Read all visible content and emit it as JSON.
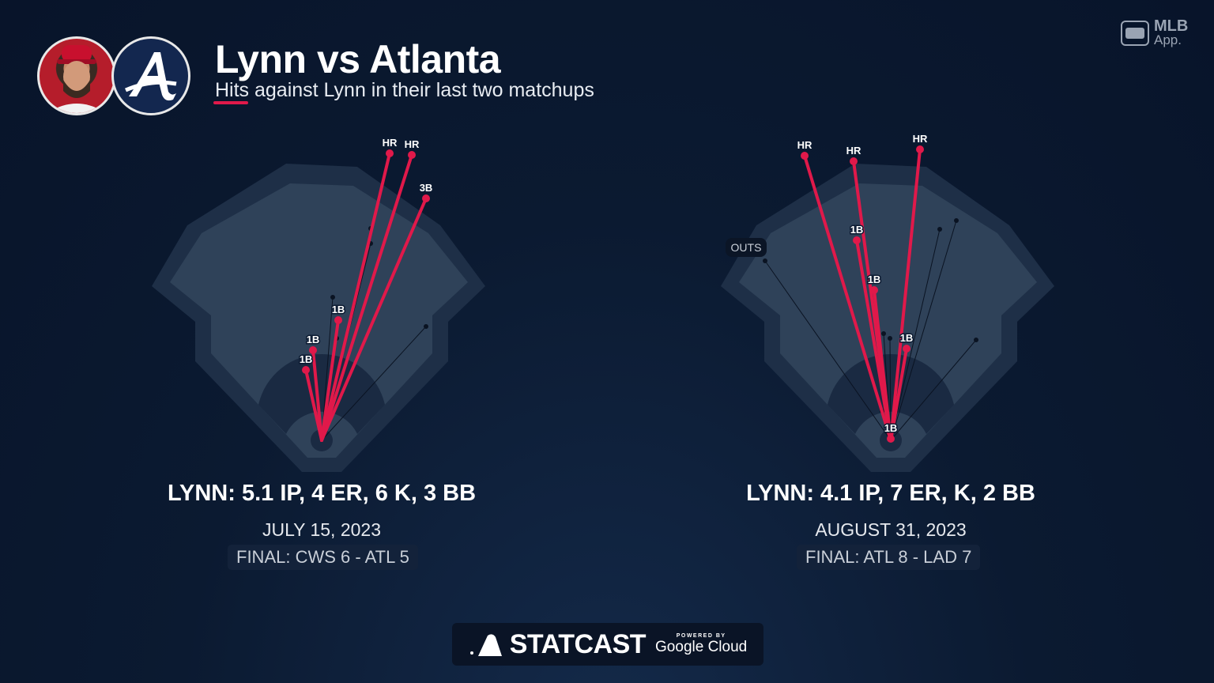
{
  "header": {
    "title": "Lynn vs Atlanta",
    "subtitle": "Hits against Lynn in their last two matchups",
    "accent": "#e0194a"
  },
  "brand": {
    "app_line1": "MLB",
    "app_line2": "App.",
    "footer_logo": "STATCAST",
    "powered_by": "POWERED BY",
    "partner": "Google Cloud"
  },
  "games": [
    {
      "stat_line": "LYNN: 5.1 IP, 4 ER, 6 K, 3 BB",
      "date": "JULY 15, 2023",
      "final": "FINAL: CWS 6 - ATL 5",
      "hits": [
        "HR",
        "HR",
        "3B",
        "1B",
        "1B",
        "1B"
      ],
      "outs_label": ""
    },
    {
      "stat_line": "LYNN: 4.1 IP, 7 ER, K, 2 BB",
      "date": "AUGUST 31, 2023",
      "final": "FINAL: ATL 8 - LAD 7",
      "hits": [
        "HR",
        "HR",
        "HR",
        "1B",
        "1B",
        "1B",
        "1B"
      ],
      "outs_label": "OUTS"
    }
  ],
  "colors": {
    "hit": "#e0194a",
    "field_outer": "#1e2f47",
    "field_inner": "#2f4259",
    "infield_ring": "#1a2a42",
    "out": "#0a1322"
  }
}
